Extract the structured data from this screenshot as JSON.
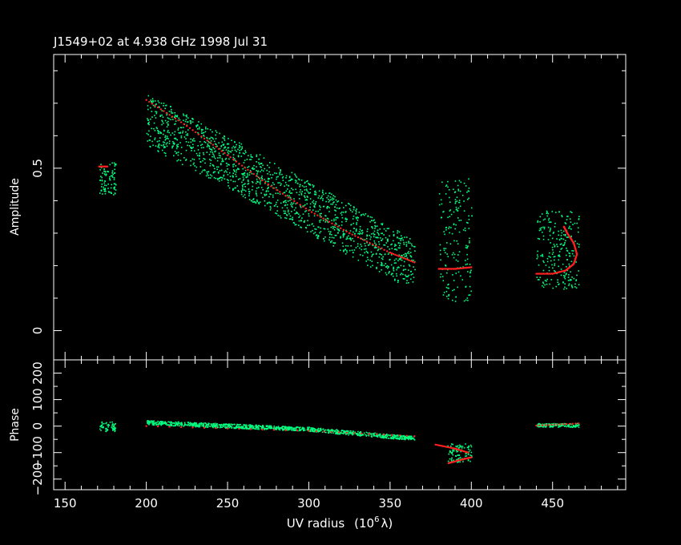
{
  "chart_data": {
    "type": "scatter",
    "title": "J1549+02 at 4.938 GHz 1998 Jul 31",
    "xlabel": "UV radius",
    "xlabel_unit": "(10",
    "xlabel_unit_exp": "6",
    "xlabel_unit_sym": "λ)",
    "xlim": [
      143,
      495
    ],
    "xticks": [
      150,
      200,
      250,
      300,
      350,
      400,
      450
    ],
    "xtick_labels": [
      "150",
      "200",
      "250",
      "300",
      "350",
      "400",
      "450"
    ],
    "colors": {
      "background": "#000000",
      "axes": "#ffffff",
      "observed": "#00ff80",
      "model": "#ff2020"
    },
    "panels": [
      {
        "name": "amplitude",
        "ylabel": "Amplitude",
        "ylim": [
          -0.09,
          0.85
        ],
        "yticks": [
          0,
          0.5
        ],
        "ytick_labels": [
          "0",
          "0.5"
        ],
        "groups": [
          {
            "x": [
              171,
              181
            ],
            "y_center": 0.47,
            "y_spread": 0.05
          },
          {
            "x": [
              200,
              365
            ],
            "trend": [
              [
                200,
                0.65
              ],
              [
                250,
                0.52
              ],
              [
                300,
                0.38
              ],
              [
                365,
                0.2
              ]
            ],
            "y_spread": 0.08
          },
          {
            "x": [
              380,
              400
            ],
            "y_center": 0.28,
            "y_spread": 0.19
          },
          {
            "x": [
              440,
              466
            ],
            "y_center": 0.25,
            "y_spread": 0.12
          }
        ],
        "model_series": [
          {
            "points": [
              [
                171,
                0.505
              ],
              [
                176,
                0.505
              ]
            ]
          },
          {
            "points": [
              [
                200,
                0.71
              ],
              [
                225,
                0.63
              ],
              [
                250,
                0.54
              ],
              [
                275,
                0.45
              ],
              [
                300,
                0.37
              ],
              [
                325,
                0.3
              ],
              [
                350,
                0.24
              ],
              [
                365,
                0.21
              ]
            ]
          },
          {
            "points": [
              [
                380,
                0.19
              ],
              [
                390,
                0.19
              ],
              [
                400,
                0.195
              ]
            ]
          },
          {
            "points": [
              [
                440,
                0.175
              ],
              [
                450,
                0.175
              ],
              [
                458,
                0.185
              ],
              [
                463,
                0.205
              ],
              [
                465,
                0.235
              ],
              [
                463,
                0.27
              ],
              [
                459,
                0.3
              ],
              [
                457,
                0.32
              ]
            ]
          }
        ]
      },
      {
        "name": "phase",
        "ylabel": "Phase",
        "ylim": [
          -240,
          250
        ],
        "yticks": [
          -200,
          -100,
          0,
          100,
          200
        ],
        "ytick_labels": [
          "−200",
          "−100",
          "0",
          "100",
          "200"
        ],
        "groups": [
          {
            "x": [
              171,
              181
            ],
            "y_center": 0,
            "y_spread": 18
          },
          {
            "x": [
              200,
              365
            ],
            "trend": [
              [
                200,
                15
              ],
              [
                300,
                -10
              ],
              [
                365,
                -45
              ]
            ],
            "y_spread": 8
          },
          {
            "x": [
              385,
              400
            ],
            "y_center": -100,
            "y_spread": 35
          },
          {
            "x": [
              440,
              466
            ],
            "y_center": 5,
            "y_spread": 7
          }
        ],
        "model_series": [
          {
            "points": [
              [
                200,
                0
              ],
              [
                300,
                -18
              ],
              [
                365,
                -38
              ]
            ]
          },
          {
            "points": [
              [
                378,
                -70
              ],
              [
                390,
                -85
              ],
              [
                398,
                -100
              ]
            ]
          },
          {
            "points": [
              [
                386,
                -140
              ],
              [
                395,
                -125
              ],
              [
                400,
                -118
              ]
            ]
          },
          {
            "points": [
              [
                440,
                2
              ],
              [
                466,
                10
              ]
            ]
          }
        ]
      }
    ]
  }
}
